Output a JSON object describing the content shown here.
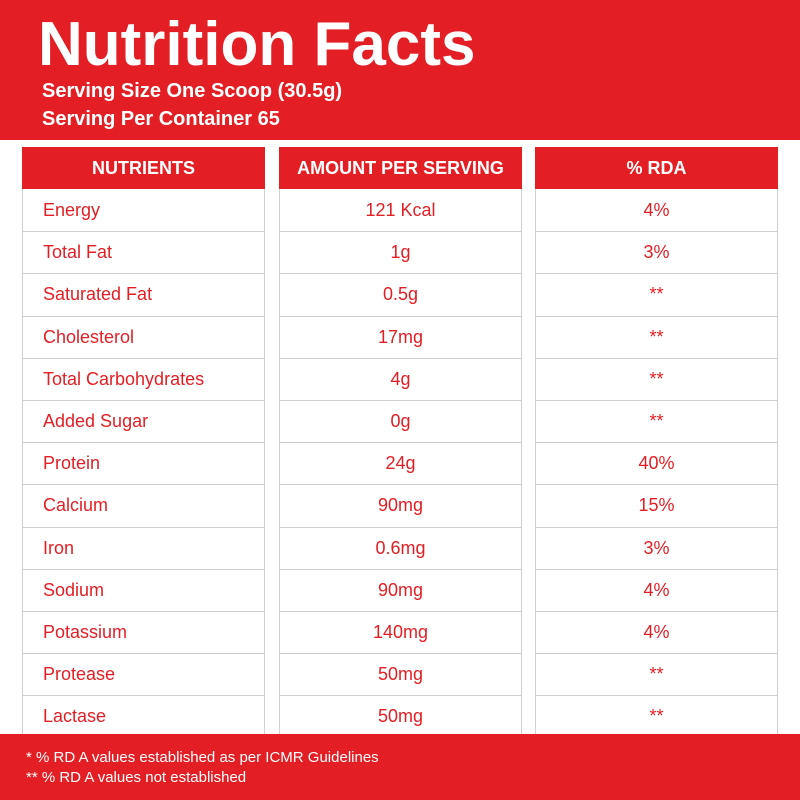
{
  "header": {
    "title": "Nutrition Facts",
    "serving_size": "Serving Size One Scoop (30.5g)",
    "servings_per_container": "Serving Per Container 65"
  },
  "table": {
    "columns": [
      "NUTRIENTS",
      "AMOUNT PER SERVING",
      "% RDA"
    ],
    "rows": [
      {
        "nutrient": "Energy",
        "amount": "121 Kcal",
        "rda": "4%"
      },
      {
        "nutrient": "Total Fat",
        "amount": "1g",
        "rda": "3%"
      },
      {
        "nutrient": "Saturated Fat",
        "amount": "0.5g",
        "rda": "**"
      },
      {
        "nutrient": "Cholesterol",
        "amount": "17mg",
        "rda": "**"
      },
      {
        "nutrient": "Total Carbohydrates",
        "amount": "4g",
        "rda": "**"
      },
      {
        "nutrient": "Added Sugar",
        "amount": "0g",
        "rda": "**"
      },
      {
        "nutrient": "Protein",
        "amount": "24g",
        "rda": "40%"
      },
      {
        "nutrient": "Calcium",
        "amount": "90mg",
        "rda": "15%"
      },
      {
        "nutrient": "Iron",
        "amount": "0.6mg",
        "rda": "3%"
      },
      {
        "nutrient": "Sodium",
        "amount": "90mg",
        "rda": "4%"
      },
      {
        "nutrient": "Potassium",
        "amount": "140mg",
        "rda": "4%"
      },
      {
        "nutrient": "Protease",
        "amount": "50mg",
        "rda": "**"
      },
      {
        "nutrient": "Lactase",
        "amount": "50mg",
        "rda": "**"
      }
    ]
  },
  "footer": {
    "note1": "* % RD A values established as per ICMR Guidelines",
    "note2": "** % RD A values not established"
  },
  "colors": {
    "brand_red": "#e31e24",
    "background": "#ffffff",
    "grid": "#cfcfcf"
  }
}
